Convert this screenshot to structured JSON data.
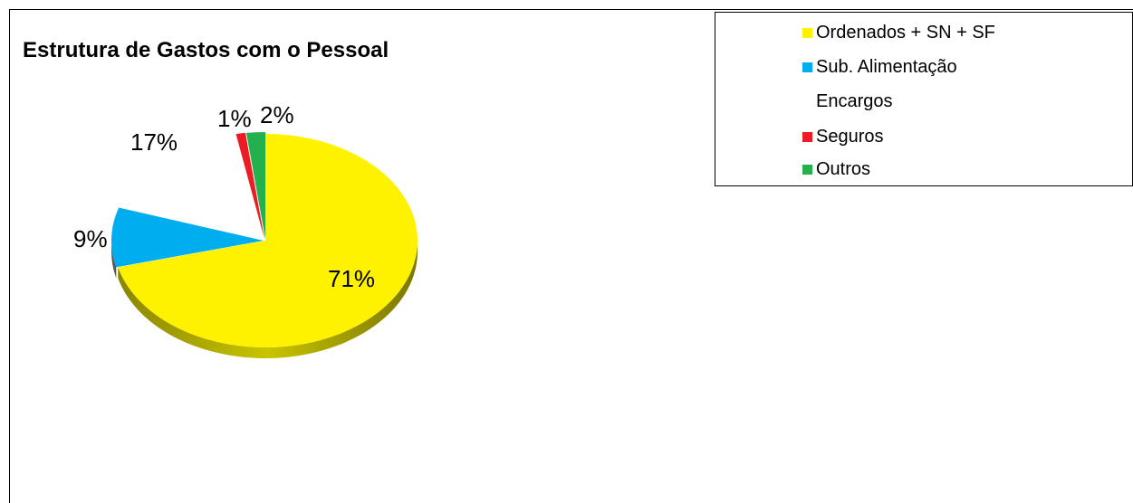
{
  "chart_data": {
    "type": "pie",
    "title": "Estrutura de Gastos com o Pessoal",
    "slices": [
      {
        "name": "Ordenados + SN + SF",
        "value": 71,
        "label": "71%",
        "color": "#FFF200"
      },
      {
        "name": "Sub. Alimentação",
        "value": 9,
        "label": "9%",
        "color": "#00AEEF"
      },
      {
        "name": "Encargos",
        "value": 17,
        "label": "17%",
        "color": null
      },
      {
        "name": "Seguros",
        "value": 1,
        "label": "1%",
        "color": "#ED1C24"
      },
      {
        "name": "Outros",
        "value": 2,
        "label": "2%",
        "color": "#22B14C"
      }
    ],
    "legend_placement": "top-right",
    "style": "3d-pie"
  }
}
